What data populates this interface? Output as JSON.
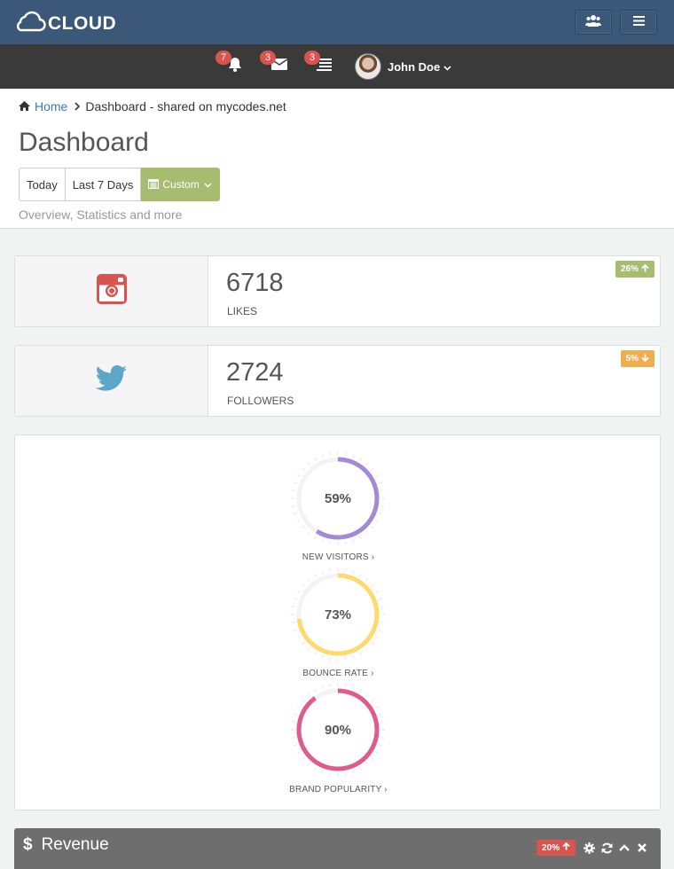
{
  "brand": {
    "name": "CLOUD"
  },
  "nav": {
    "notifications": {
      "icon": "bell-icon",
      "count": "7"
    },
    "messages": {
      "icon": "envelope-icon",
      "count": "3"
    },
    "tasks": {
      "icon": "tasks-icon",
      "count": "3"
    },
    "user": {
      "name": "John Doe"
    }
  },
  "breadcrumb": {
    "home": "Home",
    "current": "Dashboard - shared on mycodes.net"
  },
  "page": {
    "title": "Dashboard",
    "subtitle": "Overview, Statistics and more",
    "range_buttons": {
      "today": "Today",
      "last7": "Last 7 Days",
      "custom": "Custom"
    }
  },
  "stats": [
    {
      "icon": "instagram-icon",
      "value": "6718",
      "label": "LIKES",
      "badge": "26%",
      "trend": "up",
      "color": "#d9534f",
      "badge_color": "#a6bc6f"
    },
    {
      "icon": "twitter-icon",
      "value": "2724",
      "label": "FOLLOWERS",
      "badge": "5%",
      "trend": "down",
      "color": "#5aa7c7",
      "badge_color": "#f0ad4e"
    }
  ],
  "gauges": [
    {
      "label": "NEW VISITORS",
      "value_text": "59%",
      "value": 59,
      "color": "#a48ad4"
    },
    {
      "label": "BOUNCE RATE",
      "value_text": "73%",
      "value": 73,
      "color": "#ffd96b"
    },
    {
      "label": "BRAND POPULARITY",
      "value_text": "90%",
      "value": 90,
      "color": "#e05a8d"
    }
  ],
  "revenue": {
    "title": "Revenue",
    "badge": "20%",
    "trend": "up"
  },
  "colors": {
    "topbar": "#3b5878",
    "navbar": "#3a3a3a",
    "accent": "#a6bc6f"
  }
}
